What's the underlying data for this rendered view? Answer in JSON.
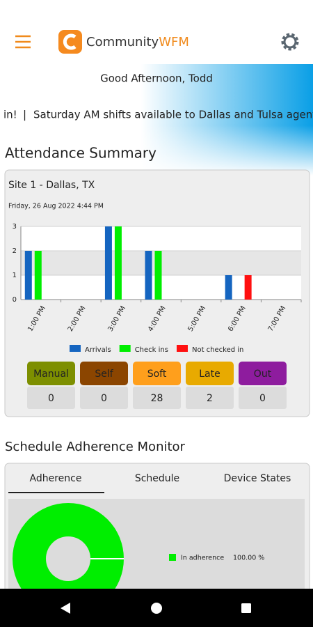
{
  "header": {
    "brand_main": "Community",
    "brand_accent": "WFM"
  },
  "banner": {
    "greeting": "Good Afternoon, Todd",
    "ticker_items": [
      "in!",
      "Saturday AM shifts available to Dallas and Tulsa agents"
    ],
    "separator": "|"
  },
  "attendance": {
    "title": "Attendance Summary",
    "site": "Site 1 - Dallas, TX",
    "timestamp": "Friday, 26 Aug 2022 4:44 PM",
    "chart_data": {
      "type": "bar",
      "categories": [
        "1:00 PM",
        "2:00 PM",
        "3:00 PM",
        "4:00 PM",
        "5:00 PM",
        "6:00 PM",
        "7:00 PM"
      ],
      "series": [
        {
          "name": "Arrivals",
          "color": "#1565c0",
          "values": [
            2,
            0,
            3,
            2,
            0,
            1,
            0
          ]
        },
        {
          "name": "Check ins",
          "color": "#00ee00",
          "values": [
            2,
            0,
            3,
            2,
            0,
            0,
            0
          ]
        },
        {
          "name": "Not checked in",
          "color": "#ff1010",
          "values": [
            0,
            0,
            0,
            0,
            0,
            1,
            0
          ]
        }
      ],
      "ylim": [
        0,
        3
      ],
      "yticks": [
        0,
        1,
        2,
        3
      ],
      "grid": true
    },
    "tiles": [
      {
        "label": "Manual",
        "value": 0,
        "color": "#7d8f00"
      },
      {
        "label": "Self",
        "value": 0,
        "color": "#8b4500"
      },
      {
        "label": "Soft",
        "value": 28,
        "color": "#ff9f1c"
      },
      {
        "label": "Late",
        "value": 2,
        "color": "#e8aa00"
      },
      {
        "label": "Out",
        "value": 0,
        "color": "#8e1c9e"
      }
    ]
  },
  "adherence": {
    "title": "Schedule Adherence Monitor",
    "tabs": [
      "Adherence",
      "Schedule",
      "Device States"
    ],
    "selected_tab": 0,
    "chart_data": {
      "type": "pie",
      "categories": [
        "In adherence"
      ],
      "values": [
        100
      ],
      "value_labels": [
        "100.00 %"
      ],
      "colors": [
        "#00ee00"
      ]
    }
  }
}
